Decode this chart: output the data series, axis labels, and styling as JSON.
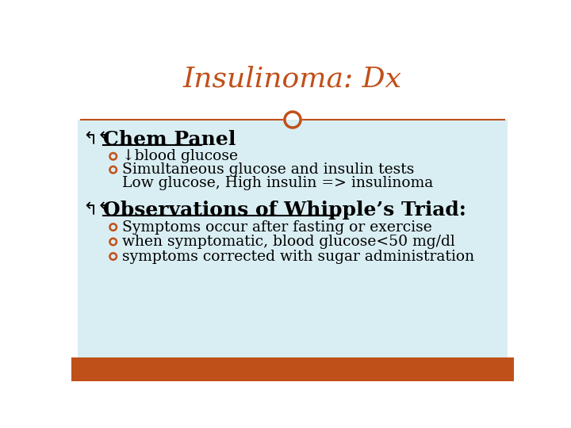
{
  "title": "Insulinoma: Dx",
  "title_color": "#C0501A",
  "title_fontsize": 26,
  "bg_color": "#FFFFFF",
  "content_bg": "#D9EEF3",
  "footer_color": "#C0501A",
  "header_line_color": "#C0501A",
  "circle_color": "#C0501A",
  "section1_heading": "Chem Panel",
  "section1_bullet1": "↓blood glucose",
  "section1_bullet2": "Simultaneous glucose and insulin tests",
  "section1_sub": "Low glucose, High insulin => insulinoma",
  "section2_heading": "Observations of Whipple’s Triad:",
  "section2_bullet1": "Symptoms occur after fasting or exercise",
  "section2_bullet2": "when symptomatic, blood glucose<50 mg/dl",
  "section2_bullet3": "symptoms corrected with sugar administration",
  "heading_color": "#000000",
  "text_color": "#000000",
  "bullet_color": "#C0501A",
  "heading_fontsize": 18,
  "text_fontsize": 13.5
}
